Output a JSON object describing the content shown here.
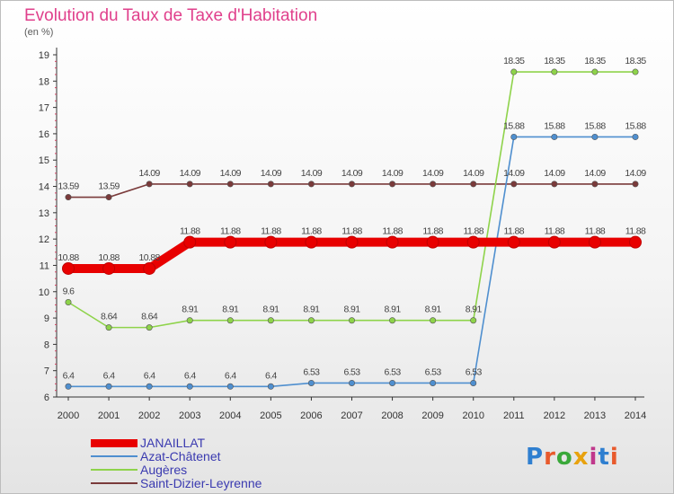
{
  "header": {
    "title": "Evolution du Taux de Taxe d'Habitation",
    "subtitle": "(en %)"
  },
  "logo": {
    "text": "Proxiti",
    "colors": [
      "#2f7fd0",
      "#e85a2c",
      "#3aa83a",
      "#e8a20e",
      "#c0388c",
      "#2f7fd0",
      "#e85a2c"
    ]
  },
  "chart_data": {
    "type": "line",
    "categories": [
      "2000",
      "2001",
      "2002",
      "2003",
      "2004",
      "2005",
      "2006",
      "2007",
      "2008",
      "2009",
      "2010",
      "2011",
      "2012",
      "2013",
      "2014"
    ],
    "ylim": [
      6,
      19
    ],
    "yticks": [
      "6",
      "7",
      "8",
      "9",
      "10",
      "11",
      "12",
      "13",
      "14",
      "15",
      "16",
      "17",
      "18",
      "19"
    ],
    "xlabel": "",
    "ylabel": "",
    "grid": false,
    "legend_position": "bottom-left",
    "series": [
      {
        "name": "JANAILLAT",
        "color": "#e80000",
        "values": [
          10.88,
          10.88,
          10.88,
          11.88,
          11.88,
          11.88,
          11.88,
          11.88,
          11.88,
          11.88,
          11.88,
          11.88,
          11.88,
          11.88,
          11.88
        ],
        "labels": [
          "10.88",
          "10.88",
          "10.88",
          "11.88",
          "11.88",
          "11.88",
          "11.88",
          "11.88",
          "11.88",
          "11.88",
          "11.88",
          "11.88",
          "11.88",
          "11.88",
          "11.88"
        ]
      },
      {
        "name": "Azat-Châtenet",
        "color": "#4f8fcf",
        "values": [
          6.4,
          6.4,
          6.4,
          6.4,
          6.4,
          6.4,
          6.53,
          6.53,
          6.53,
          6.53,
          6.53,
          15.88,
          15.88,
          15.88,
          15.88
        ],
        "labels": [
          "6.4",
          "6.4",
          "6.4",
          "6.4",
          "6.4",
          "6.4",
          "6.53",
          "6.53",
          "6.53",
          "6.53",
          "6.53",
          "15.88",
          "15.88",
          "15.88",
          "15.88"
        ]
      },
      {
        "name": "Augères",
        "color": "#8ed34a",
        "values": [
          9.6,
          8.64,
          8.64,
          8.91,
          8.91,
          8.91,
          8.91,
          8.91,
          8.91,
          8.91,
          8.91,
          18.35,
          18.35,
          18.35,
          18.35
        ],
        "labels": [
          "9.6",
          "8.64",
          "8.64",
          "8.91",
          "8.91",
          "8.91",
          "8.91",
          "8.91",
          "8.91",
          "8.91",
          "8.91",
          "18.35",
          "18.35",
          "18.35",
          "18.35"
        ]
      },
      {
        "name": "Saint-Dizier-Leyrenne",
        "color": "#7a3a3a",
        "values": [
          13.59,
          13.59,
          14.09,
          14.09,
          14.09,
          14.09,
          14.09,
          14.09,
          14.09,
          14.09,
          14.09,
          14.09,
          14.09,
          14.09,
          14.09
        ],
        "labels": [
          "13.59",
          "13.59",
          "14.09",
          "14.09",
          "14.09",
          "14.09",
          "14.09",
          "14.09",
          "14.09",
          "14.09",
          "14.09",
          "14.09",
          "14.09",
          "14.09",
          "14.09"
        ]
      }
    ]
  }
}
